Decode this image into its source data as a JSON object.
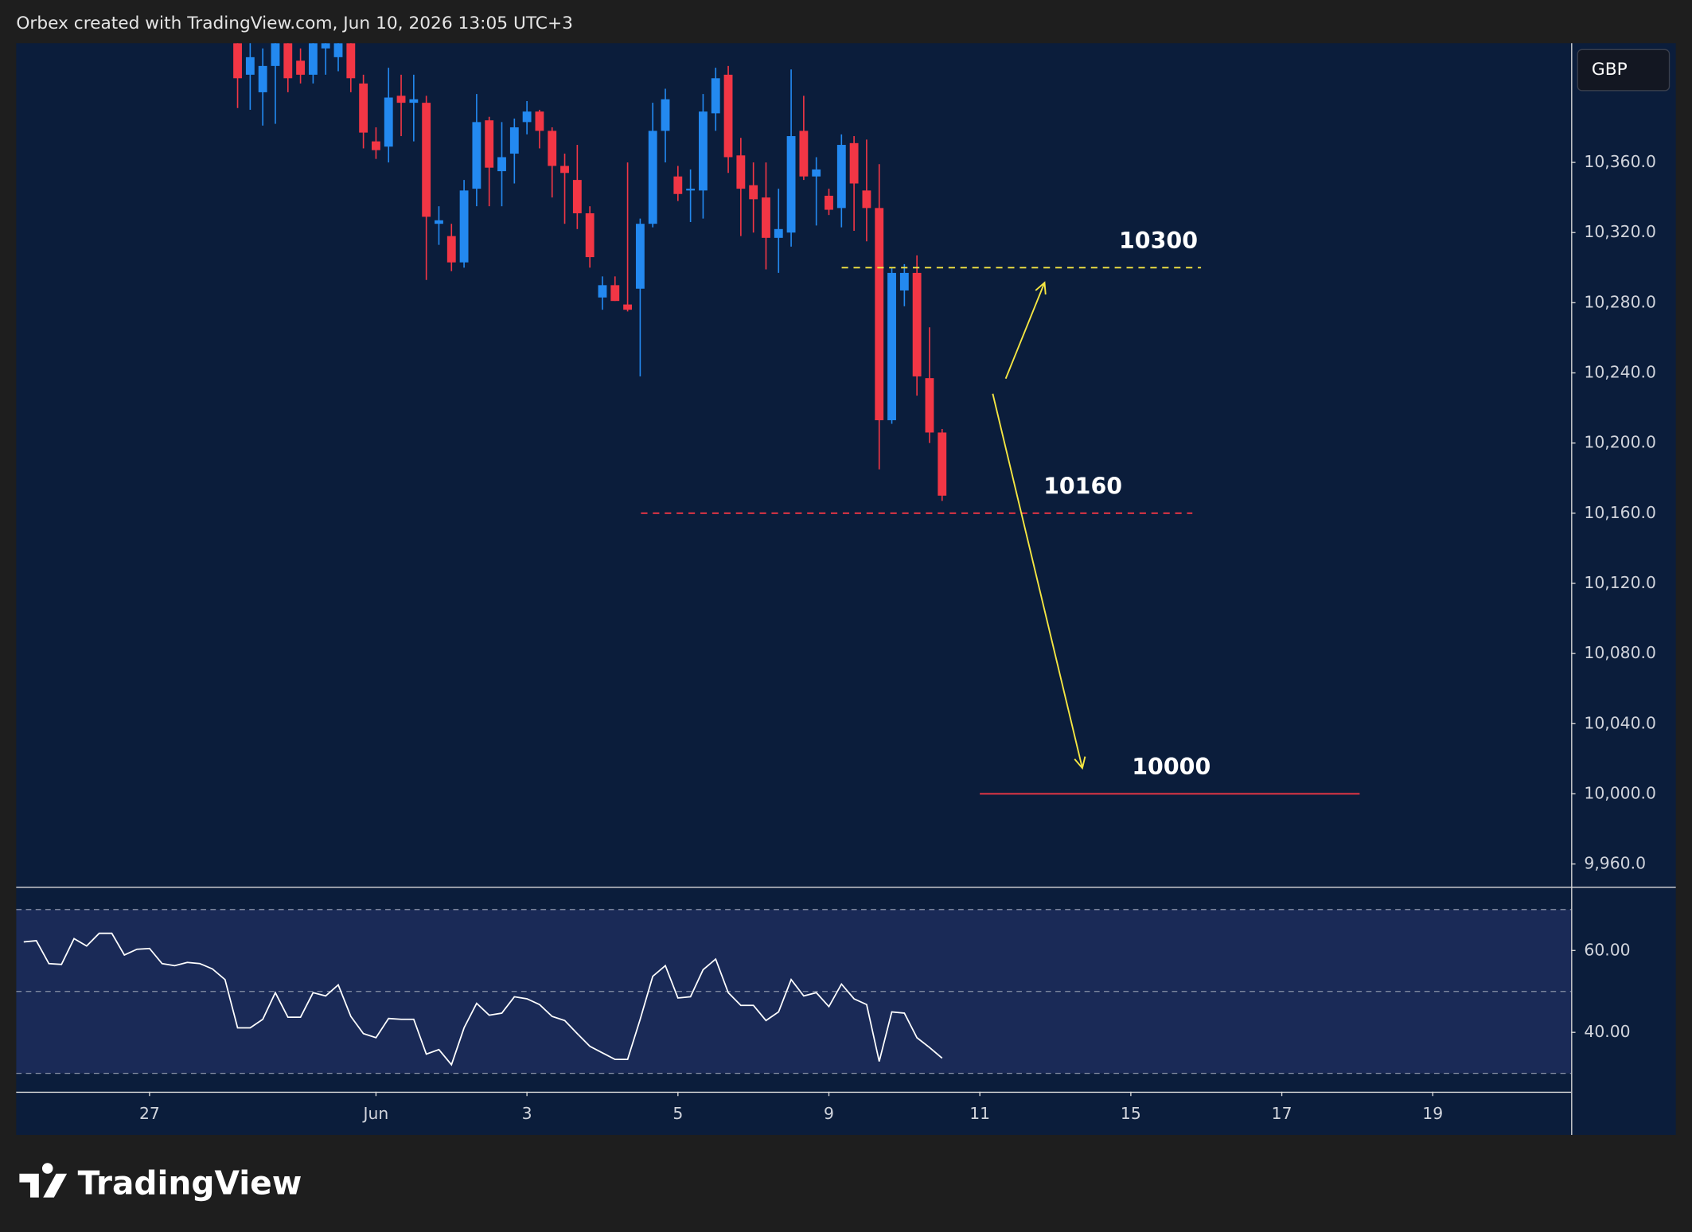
{
  "header": {
    "text": "Orbex created with TradingView.com, Jun 10, 2026 13:05 UTC+3"
  },
  "watermark": "TradingView",
  "chart_data": {
    "type": "candlestick",
    "currency": "GBP",
    "up_color": "#2389f0",
    "down_color": "#f23645",
    "x": [
      0,
      1,
      2,
      3,
      4,
      5,
      6,
      7,
      8,
      9,
      10,
      11,
      12,
      13,
      14,
      15,
      16,
      17,
      18,
      19,
      20,
      21,
      22,
      23,
      24,
      25,
      26,
      27,
      28,
      29,
      30,
      31,
      32,
      33,
      34,
      35,
      36,
      37,
      38,
      39,
      40,
      41,
      42,
      43,
      44,
      45,
      46,
      47,
      48,
      49,
      50,
      51,
      52,
      53,
      54,
      55,
      56
    ],
    "open": [
      10428,
      10410,
      10400,
      10415,
      10428,
      10418,
      10410,
      10425,
      10420,
      10428,
      10405,
      10372,
      10369,
      10398,
      10394,
      10394,
      10325,
      10318,
      10303,
      10345,
      10384,
      10355,
      10365,
      10383,
      10389,
      10378,
      10358,
      10350,
      10331,
      10283,
      10290,
      10279,
      10288,
      10325,
      10378,
      10352,
      10344,
      10344,
      10388,
      10410,
      10364,
      10347,
      10340,
      10317,
      10320,
      10378,
      10352,
      10341,
      10334,
      10371,
      10344,
      10334,
      10213,
      10287,
      10297,
      10237,
      10206
    ],
    "high": [
      10432,
      10430,
      10425,
      10432,
      10432,
      10425,
      10432,
      10432,
      10430,
      10432,
      10410,
      10380,
      10414,
      10410,
      10410,
      10398,
      10335,
      10325,
      10350,
      10399,
      10386,
      10383,
      10385,
      10395,
      10390,
      10380,
      10365,
      10370,
      10335,
      10295,
      10295,
      10360,
      10328,
      10394,
      10402,
      10358,
      10356,
      10399,
      10414,
      10415,
      10374,
      10360,
      10360,
      10345,
      10413,
      10398,
      10363,
      10345,
      10376,
      10375,
      10373,
      10359,
      10300,
      10302,
      10307,
      10266,
      10208
    ],
    "low": [
      10391,
      10390,
      10381,
      10382,
      10400,
      10405,
      10405,
      10410,
      10412,
      10400,
      10368,
      10362,
      10360,
      10375,
      10372,
      10293,
      10313,
      10298,
      10300,
      10335,
      10335,
      10335,
      10348,
      10376,
      10368,
      10340,
      10325,
      10322,
      10300,
      10276,
      10281,
      10275,
      10238,
      10323,
      10360,
      10338,
      10326,
      10328,
      10378,
      10354,
      10318,
      10320,
      10299,
      10297,
      10312,
      10350,
      10324,
      10330,
      10323,
      10321,
      10315,
      10185,
      10211,
      10278,
      10227,
      10200,
      10167
    ],
    "close": [
      10408,
      10420,
      10415,
      10428,
      10408,
      10410,
      10428,
      10428,
      10428,
      10408,
      10377,
      10367,
      10397,
      10394,
      10396,
      10329,
      10327,
      10303,
      10344,
      10383,
      10357,
      10363,
      10380,
      10389,
      10378,
      10358,
      10354,
      10331,
      10306,
      10290,
      10281,
      10276,
      10325,
      10378,
      10396,
      10342,
      10345,
      10389,
      10408,
      10363,
      10345,
      10339,
      10317,
      10322,
      10375,
      10352,
      10356,
      10333,
      10370,
      10348,
      10334,
      10213,
      10297,
      10297,
      10238,
      10206,
      10170
    ],
    "xlim": [
      -17.6,
      106
    ],
    "xticks": [
      {
        "value": -7,
        "label": "27"
      },
      {
        "value": 11,
        "label": "Jun"
      },
      {
        "value": 23,
        "label": "3"
      },
      {
        "value": 35,
        "label": "5"
      },
      {
        "value": 47,
        "label": "9"
      },
      {
        "value": 59,
        "label": "11"
      },
      {
        "value": 71,
        "label": "15"
      },
      {
        "value": 83,
        "label": "17"
      },
      {
        "value": 95,
        "label": "19"
      }
    ],
    "ylim": [
      9947,
      10428
    ],
    "yticks": [
      {
        "value": 9960,
        "label": "9,960.0"
      },
      {
        "value": 10000,
        "label": "10,000.0"
      },
      {
        "value": 10040,
        "label": "10,040.0"
      },
      {
        "value": 10080,
        "label": "10,080.0"
      },
      {
        "value": 10120,
        "label": "10,120.0"
      },
      {
        "value": 10160,
        "label": "10,160.0"
      },
      {
        "value": 10200,
        "label": "10,200.0"
      },
      {
        "value": 10240,
        "label": "10,240.0"
      },
      {
        "value": 10280,
        "label": "10,280.0"
      },
      {
        "value": 10320,
        "label": "10,320.0"
      },
      {
        "value": 10360,
        "label": "10,360.0"
      }
    ],
    "annotations": [
      {
        "label": "10300",
        "value": 10300,
        "color": "#f5e642",
        "dashed": true
      },
      {
        "label": "10160",
        "value": 10160,
        "color": "#f23645",
        "dashed": true
      },
      {
        "label": "10000",
        "value": 10000,
        "color": "#f23645",
        "dashed": false
      }
    ],
    "rsi": {
      "color": "#ffffff",
      "x": [
        -17,
        -16,
        -15,
        -14,
        -13,
        -12,
        -11,
        -10,
        -9,
        -8,
        -7,
        -6,
        -5,
        -4,
        -3,
        -2,
        -1,
        0,
        1,
        2,
        3,
        4,
        5,
        6,
        7,
        8,
        9,
        10,
        11,
        12,
        13,
        14,
        15,
        16,
        17,
        18,
        19,
        20,
        21,
        22,
        23,
        24,
        25,
        26,
        27,
        28,
        29,
        30,
        31,
        32,
        33,
        34,
        35,
        36,
        37,
        38,
        39,
        40,
        41,
        42,
        43,
        44,
        45,
        46,
        47,
        48,
        49,
        50,
        51,
        52,
        53,
        54,
        55,
        56
      ],
      "values": [
        62.1,
        62.4,
        56.8,
        56.6,
        62.9,
        61.1,
        64.2,
        64.2,
        58.9,
        60.3,
        60.5,
        56.8,
        56.3,
        57.1,
        56.8,
        55.5,
        52.9,
        41.1,
        41.1,
        43.2,
        49.7,
        43.7,
        43.7,
        49.7,
        48.9,
        51.6,
        43.9,
        39.7,
        38.7,
        43.4,
        43.2,
        43.2,
        34.7,
        35.8,
        32.1,
        41.1,
        47.1,
        44.2,
        44.7,
        48.7,
        48.2,
        46.8,
        43.9,
        42.9,
        39.7,
        36.6,
        35.0,
        33.4,
        33.4,
        43.2,
        53.7,
        56.3,
        48.4,
        48.7,
        55.3,
        57.9,
        49.7,
        46.6,
        46.6,
        42.9,
        45.0,
        52.9,
        48.9,
        49.7,
        46.3,
        51.8,
        48.2,
        46.8,
        32.9,
        45.0,
        44.7,
        38.7,
        36.3,
        33.7
      ],
      "ylim": [
        25.5,
        75.3
      ],
      "yticks": [
        {
          "value": 40,
          "label": "40.00"
        },
        {
          "value": 60,
          "label": "60.00"
        }
      ],
      "levels": [
        30,
        50,
        70
      ]
    }
  }
}
